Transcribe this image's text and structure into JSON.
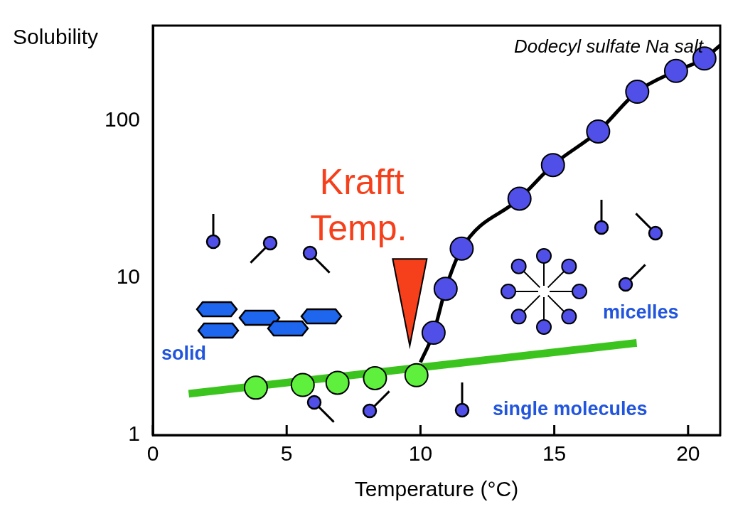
{
  "chart_data": {
    "type": "scatter",
    "title": "Dodecyl sulfate Na salt",
    "x_label": "Temperature (°C)",
    "y_label": "Solubility",
    "xlim": [
      0,
      21.2
    ],
    "xticks": [
      0,
      5,
      10,
      15,
      20
    ],
    "ylim": [
      1,
      400
    ],
    "yticks": [
      1,
      10,
      100
    ],
    "log": "y",
    "grid": false,
    "series": [
      {
        "type": "scatter",
        "color": "#5050e8",
        "marker": "circle",
        "x": [
          10.49,
          10.94,
          11.54,
          13.7,
          14.95,
          16.64,
          18.1,
          19.55,
          20.61
        ],
        "values": [
          4.47,
          8.5,
          15.3,
          31.8,
          52,
          85,
          152,
          206,
          247
        ]
      },
      {
        "type": "scatter",
        "color": "#5ef03c",
        "marker": "circle",
        "x": [
          3.85,
          5.6,
          6.9,
          8.3,
          9.85
        ],
        "values": [
          2.0,
          2.08,
          2.15,
          2.3,
          2.4
        ]
      },
      {
        "type": "line",
        "color": "#000000",
        "marker": "none",
        "line_style": "solid",
        "x": [
          10.0,
          10.49,
          10.94,
          11.54,
          13.7,
          14.95,
          16.64,
          18.1,
          19.55,
          20.61,
          21.2
        ],
        "values": [
          2.9,
          4.47,
          8.5,
          15.3,
          31.8,
          52,
          85,
          152,
          206,
          247,
          300
        ]
      },
      {
        "type": "line",
        "color": "#3cc41e",
        "marker": "none",
        "line_style": "solid",
        "x": [
          1.34,
          18.08
        ],
        "values": [
          1.83,
          3.85
        ]
      }
    ],
    "annotations": [
      {
        "text": "Krafft Temp.",
        "x": 9.6,
        "y": 3.7
      },
      {
        "text": "solid"
      },
      {
        "text": "micelles"
      },
      {
        "text": "single molecules"
      }
    ]
  }
}
